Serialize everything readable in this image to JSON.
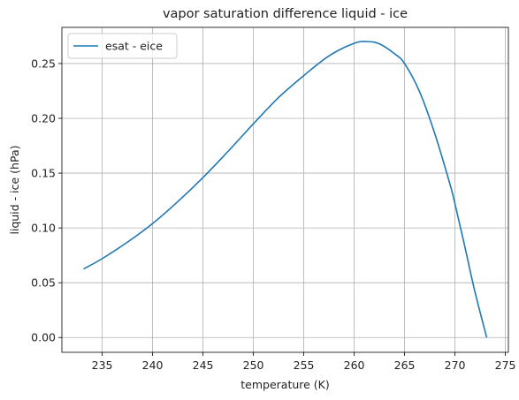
{
  "chart_data": {
    "type": "line",
    "title": "vapor saturation difference liquid - ice",
    "xlabel": "temperature (K)",
    "ylabel": "liquid - ice (hPa)",
    "xlim": [
      231.0,
      275.3
    ],
    "ylim": [
      -0.0135,
      0.283
    ],
    "xticks": [
      235,
      240,
      245,
      250,
      255,
      260,
      265,
      270,
      275
    ],
    "xtick_labels": [
      "235",
      "240",
      "245",
      "250",
      "255",
      "260",
      "265",
      "270",
      "275"
    ],
    "yticks": [
      0.0,
      0.05,
      0.1,
      0.15,
      0.2,
      0.25
    ],
    "ytick_labels": [
      "0.00",
      "0.05",
      "0.10",
      "0.15",
      "0.20",
      "0.25"
    ],
    "grid": true,
    "legend_position": "top-left",
    "series": [
      {
        "name": "esat - eice",
        "color": "#1f77b4",
        "x": [
          233.15,
          235,
          237.5,
          240,
          242.5,
          245,
          247.5,
          250,
          252.5,
          255,
          257.5,
          260,
          261.3,
          262.5,
          264,
          265,
          266.5,
          268,
          269.5,
          270,
          271,
          272,
          273.15
        ],
        "y": [
          0.0625,
          0.072,
          0.087,
          0.104,
          0.124,
          0.146,
          0.17,
          0.195,
          0.219,
          0.239,
          0.257,
          0.2685,
          0.27,
          0.268,
          0.259,
          0.25,
          0.224,
          0.186,
          0.14,
          0.122,
          0.082,
          0.041,
          0.0
        ]
      }
    ]
  }
}
